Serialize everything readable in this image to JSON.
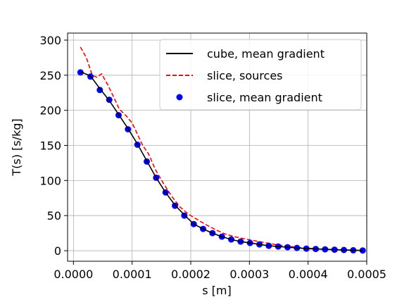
{
  "chart_data": {
    "type": "line",
    "title": "",
    "xlabel": "s [m]",
    "ylabel": "T(s) [s/kg]",
    "xlim": [
      -1e-05,
      0.0005
    ],
    "ylim": [
      -15,
      310
    ],
    "x_ticks": [
      0.0,
      0.0001,
      0.0002,
      0.0003,
      0.0004,
      0.0005
    ],
    "x_tick_labels": [
      "0.0000",
      "0.0001",
      "0.0002",
      "0.0003",
      "0.0004",
      "0.0005"
    ],
    "y_ticks": [
      0,
      50,
      100,
      150,
      200,
      250,
      300
    ],
    "y_tick_labels": [
      "0",
      "50",
      "100",
      "150",
      "200",
      "250",
      "300"
    ],
    "grid": true,
    "legend_placement": "upper-right",
    "series": [
      {
        "name": "cube, mean gradient",
        "style": "solid-line",
        "color": "#000000",
        "x": [
          1.2e-05,
          2.9e-05,
          4.5e-05,
          6.1e-05,
          7.7e-05,
          9.3e-05,
          0.000109,
          0.000125,
          0.000141,
          0.000157,
          0.000173,
          0.000189,
          0.000205,
          0.000221,
          0.000237,
          0.000253,
          0.000269,
          0.000285,
          0.000301,
          0.000317,
          0.000333,
          0.000349,
          0.000365,
          0.000381,
          0.000397,
          0.000413,
          0.000429,
          0.000445,
          0.000461,
          0.000477,
          0.000493
        ],
        "y": [
          255,
          249,
          231,
          214,
          194,
          174,
          152,
          128,
          104,
          83,
          65,
          51,
          38,
          31,
          25,
          20,
          16,
          13,
          11,
          9,
          7,
          6,
          5,
          4,
          3,
          2.5,
          2,
          1.5,
          1,
          0.6,
          0.3
        ]
      },
      {
        "name": "slice, sources",
        "style": "dashed-line",
        "color": "#ff0000",
        "x": [
          1.2e-05,
          2.2e-05,
          3.2e-05,
          4e-05,
          4.8e-05,
          5.8e-05,
          6.8e-05,
          7.8e-05,
          9e-05,
          0.0001,
          0.000108,
          0.000118,
          0.000128,
          0.00014,
          0.000154,
          0.000168,
          0.000182,
          0.000196,
          0.00021,
          0.000226,
          0.000242,
          0.000258,
          0.000274,
          0.000292,
          0.00031,
          0.00033,
          0.00035,
          0.00037,
          0.00039,
          0.00041,
          0.00043,
          0.00045,
          0.00047,
          0.00049
        ],
        "y": [
          290,
          275,
          250,
          247,
          252,
          237,
          220,
          202,
          192,
          182,
          168,
          150,
          138,
          115,
          95,
          77,
          62,
          52,
          45,
          37,
          30,
          24,
          20,
          17,
          14,
          11,
          8,
          6,
          4,
          3,
          2,
          1.5,
          1,
          0.5
        ]
      },
      {
        "name": "slice, mean gradient",
        "style": "markers",
        "color": "#0000ff",
        "x": [
          1.2e-05,
          2.9e-05,
          4.5e-05,
          6.1e-05,
          7.7e-05,
          9.3e-05,
          0.000109,
          0.000125,
          0.000141,
          0.000157,
          0.000173,
          0.000189,
          0.000205,
          0.000221,
          0.000237,
          0.000253,
          0.000269,
          0.000285,
          0.000301,
          0.000317,
          0.000333,
          0.000349,
          0.000365,
          0.000381,
          0.000397,
          0.000413,
          0.000429,
          0.000445,
          0.000461,
          0.000477,
          0.000493
        ],
        "y": [
          254,
          248,
          229,
          215,
          193,
          173,
          151,
          127,
          104,
          83,
          64,
          50,
          38,
          31,
          25,
          20,
          16,
          13,
          11,
          9,
          7,
          6,
          5,
          4,
          3,
          2.5,
          2,
          1.5,
          1,
          0.6,
          0.3
        ]
      }
    ]
  }
}
